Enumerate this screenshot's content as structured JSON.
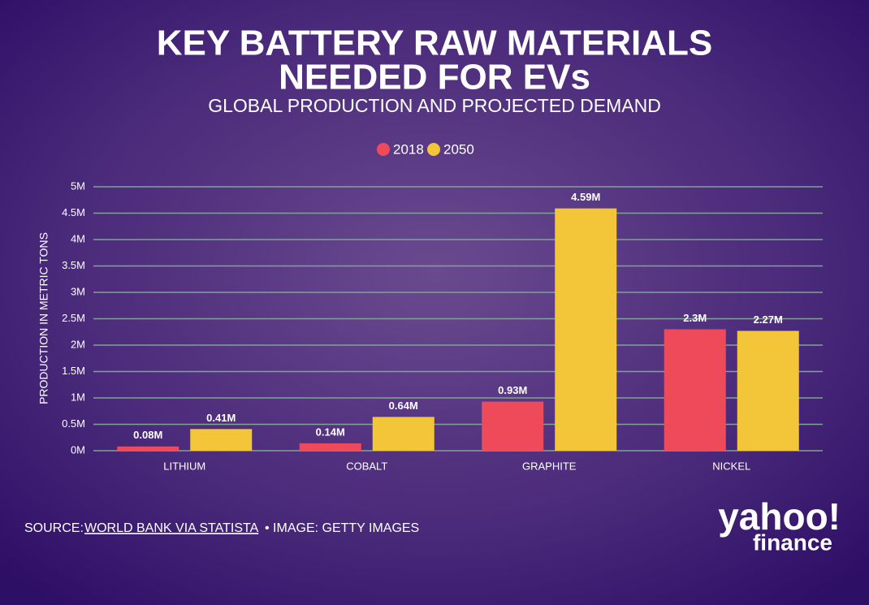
{
  "chart_data": {
    "type": "bar",
    "title": [
      "KEY BATTERY RAW MATERIALS",
      "NEEDED FOR EVs"
    ],
    "subtitle": "GLOBAL PRODUCTION AND PROJECTED DEMAND",
    "y_label": "PRODUCTION IN METRIC TONS",
    "categories": [
      "LITHIUM",
      "COBALT",
      "GRAPHITE",
      "NICKEL"
    ],
    "series": [
      {
        "name": "2018",
        "color": "#ef4a5a",
        "values": [
          0.08,
          0.14,
          0.93,
          2.3
        ],
        "value_labels": [
          "0.08M",
          "0.14M",
          "0.93M",
          "2.3M"
        ]
      },
      {
        "name": "2050",
        "color": "#f3c63a",
        "values": [
          0.41,
          0.64,
          4.59,
          2.27
        ],
        "value_labels": [
          "0.41M",
          "0.64M",
          "4.59M",
          "2.27M"
        ]
      }
    ],
    "ylim": [
      0,
      5
    ],
    "yticks": [
      {
        "value": 0,
        "label": "0M"
      },
      {
        "value": 0.5,
        "label": "0.5M"
      },
      {
        "value": 1,
        "label": "1M"
      },
      {
        "value": 1.5,
        "label": "1.5M"
      },
      {
        "value": 2,
        "label": "2M"
      },
      {
        "value": 2.5,
        "label": "2.5M"
      },
      {
        "value": 3,
        "label": "3M"
      },
      {
        "value": 3.5,
        "label": "3.5M"
      },
      {
        "value": 4,
        "label": "4M"
      },
      {
        "value": 4.5,
        "label": "4.5M"
      },
      {
        "value": 5,
        "label": "5M"
      }
    ],
    "grid": true,
    "legend": "top",
    "source": {
      "prefix": "SOURCE:",
      "link": "WORLD BANK VIA STATISTA",
      "credit": "• IMAGE: GETTY IMAGES"
    },
    "logo": {
      "top": "yahoo!",
      "bottom": "finance"
    }
  }
}
